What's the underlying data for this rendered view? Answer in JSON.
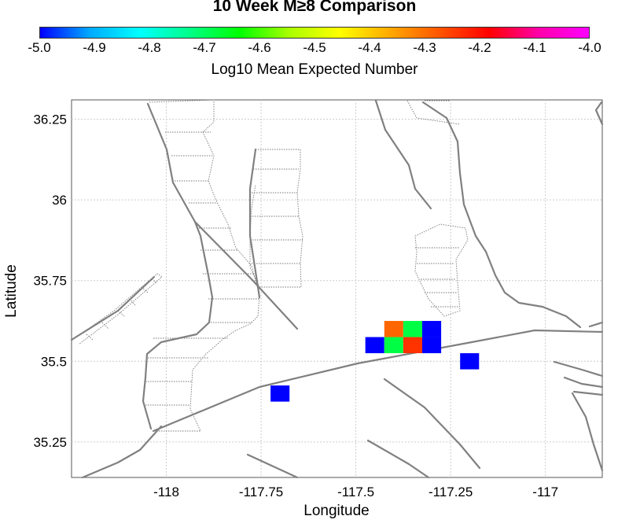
{
  "title": "10 Week M≥8 Comparison",
  "colorbar": {
    "label": "Log10 Mean Expected Number",
    "min": -5.0,
    "max": -4.0,
    "ticks": [
      "-5.0",
      "-4.9",
      "-4.8",
      "-4.7",
      "-4.6",
      "-4.5",
      "-4.4",
      "-4.3",
      "-4.2",
      "-4.1",
      "-4.0"
    ],
    "colors": [
      "#0000ff",
      "#00aaff",
      "#00ffff",
      "#00ff88",
      "#00ff00",
      "#aaff00",
      "#ffff00",
      "#ffaa00",
      "#ff5500",
      "#ff0000",
      "#ff00aa",
      "#ff00ff"
    ]
  },
  "axes": {
    "xlabel": "Longitude",
    "ylabel": "Latitude",
    "xlim": [
      -118.25,
      -116.85
    ],
    "ylim": [
      35.14,
      36.31
    ],
    "xticks": [
      {
        "value": -118.0,
        "label": "-118"
      },
      {
        "value": -117.75,
        "label": "-117.75"
      },
      {
        "value": -117.5,
        "label": "-117.5"
      },
      {
        "value": -117.25,
        "label": "-117.25"
      },
      {
        "value": -117.0,
        "label": "-117"
      }
    ],
    "yticks": [
      {
        "value": 35.25,
        "label": "35.25"
      },
      {
        "value": 35.5,
        "label": "35.5"
      },
      {
        "value": 35.75,
        "label": "35.75"
      },
      {
        "value": 36.0,
        "label": "36"
      },
      {
        "value": 36.25,
        "label": "36.25"
      }
    ],
    "grid": true
  },
  "cells": [
    {
      "lon": -117.45,
      "lat": 35.55,
      "color": "#0000ff"
    },
    {
      "lon": -117.4,
      "lat": 35.55,
      "color": "#00ff44"
    },
    {
      "lon": -117.35,
      "lat": 35.55,
      "color": "#ff3300"
    },
    {
      "lon": -117.3,
      "lat": 35.55,
      "color": "#0000ff"
    },
    {
      "lon": -117.4,
      "lat": 35.6,
      "color": "#ff6600"
    },
    {
      "lon": -117.35,
      "lat": 35.6,
      "color": "#00ff44"
    },
    {
      "lon": -117.3,
      "lat": 35.6,
      "color": "#0000ff"
    },
    {
      "lon": -117.7,
      "lat": 35.4,
      "color": "#0000ff"
    },
    {
      "lon": -117.2,
      "lat": 35.5,
      "color": "#0000ff"
    }
  ]
}
